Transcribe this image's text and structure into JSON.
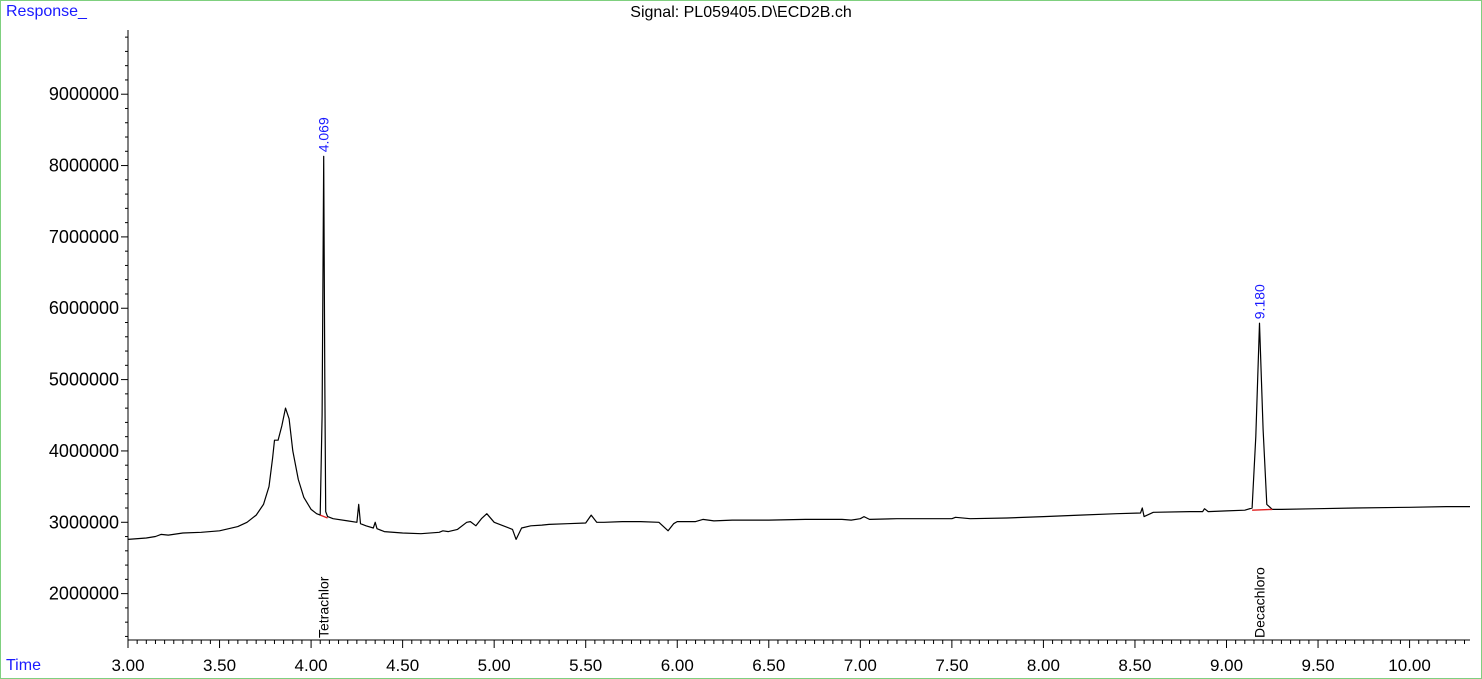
{
  "header": {
    "y_label": "Response_",
    "x_label": "Time",
    "signal_title": "Signal: PL059405.D\\ECD2B.ch"
  },
  "chart_data": {
    "type": "line",
    "title": "Signal: PL059405.D\\ECD2B.ch",
    "xlabel": "Time",
    "ylabel": "Response_",
    "xlim": [
      3.0,
      10.33
    ],
    "ylim": [
      1350000,
      9900000
    ],
    "xticks": [
      "3.00",
      "3.50",
      "4.00",
      "4.50",
      "5.00",
      "5.50",
      "6.00",
      "6.50",
      "7.00",
      "7.50",
      "8.00",
      "8.50",
      "9.00",
      "9.50",
      "10.00"
    ],
    "yticks": [
      "2000000",
      "3000000",
      "4000000",
      "5000000",
      "6000000",
      "7000000",
      "8000000",
      "9000000"
    ],
    "series": [
      {
        "line_color": "#000000",
        "x": [
          3.0,
          3.1,
          3.15,
          3.18,
          3.22,
          3.3,
          3.4,
          3.5,
          3.55,
          3.6,
          3.65,
          3.7,
          3.74,
          3.77,
          3.79,
          3.8,
          3.82,
          3.84,
          3.86,
          3.88,
          3.9,
          3.93,
          3.96,
          4.0,
          4.03,
          4.05,
          4.06,
          4.069,
          4.075,
          4.08,
          4.09,
          4.12,
          4.2,
          4.25,
          4.26,
          4.27,
          4.3,
          4.34,
          4.35,
          4.36,
          4.4,
          4.5,
          4.6,
          4.7,
          4.72,
          4.75,
          4.8,
          4.85,
          4.87,
          4.9,
          4.93,
          4.96,
          5.0,
          5.05,
          5.1,
          5.12,
          5.15,
          5.2,
          5.26,
          5.3,
          5.4,
          5.5,
          5.53,
          5.56,
          5.6,
          5.7,
          5.8,
          5.9,
          5.95,
          5.98,
          6.0,
          6.1,
          6.14,
          6.2,
          6.3,
          6.5,
          6.7,
          6.9,
          6.95,
          7.0,
          7.02,
          7.05,
          7.2,
          7.4,
          7.5,
          7.52,
          7.6,
          7.8,
          8.0,
          8.2,
          8.4,
          8.53,
          8.54,
          8.55,
          8.6,
          8.8,
          8.87,
          8.88,
          8.9,
          9.0,
          9.1,
          9.14,
          9.16,
          9.18,
          9.2,
          9.22,
          9.25,
          9.3,
          9.5,
          9.7,
          10.0,
          10.2,
          10.33
        ],
        "y": [
          2760000,
          2780000,
          2800000,
          2830000,
          2820000,
          2850000,
          2860000,
          2880000,
          2910000,
          2940000,
          3000000,
          3100000,
          3250000,
          3500000,
          3900000,
          4150000,
          4150000,
          4350000,
          4600000,
          4450000,
          4000000,
          3600000,
          3350000,
          3180000,
          3120000,
          3100000,
          4500000,
          8130000,
          5000000,
          3150000,
          3080000,
          3050000,
          3020000,
          3000000,
          3250000,
          2980000,
          2950000,
          2920000,
          3000000,
          2910000,
          2870000,
          2850000,
          2840000,
          2860000,
          2880000,
          2870000,
          2900000,
          3000000,
          3010000,
          2950000,
          3050000,
          3120000,
          3000000,
          2950000,
          2900000,
          2760000,
          2920000,
          2950000,
          2960000,
          2970000,
          2980000,
          2990000,
          3100000,
          3000000,
          3000000,
          3010000,
          3010000,
          3000000,
          2880000,
          2980000,
          3010000,
          3010000,
          3040000,
          3020000,
          3030000,
          3030000,
          3040000,
          3040000,
          3030000,
          3050000,
          3080000,
          3040000,
          3050000,
          3050000,
          3050000,
          3070000,
          3050000,
          3060000,
          3080000,
          3100000,
          3120000,
          3130000,
          3200000,
          3080000,
          3140000,
          3150000,
          3150000,
          3190000,
          3150000,
          3160000,
          3170000,
          3200000,
          4200000,
          5790000,
          4300000,
          3250000,
          3180000,
          3180000,
          3190000,
          3200000,
          3210000,
          3220000,
          3220000
        ]
      },
      {
        "line_color": "#e02020",
        "x": [
          4.05,
          4.09
        ],
        "y": [
          3100000,
          3060000
        ]
      },
      {
        "line_color": "#e02020",
        "x": [
          9.14,
          9.25
        ],
        "y": [
          3170000,
          3180000
        ]
      }
    ],
    "peaks": [
      {
        "x": 4.069,
        "y": 8130000,
        "label": "4.069",
        "compound": "Tetrachlor"
      },
      {
        "x": 9.18,
        "y": 5790000,
        "label": "9.180",
        "compound": "Decachloro"
      }
    ],
    "grid": false,
    "legend": "none"
  }
}
